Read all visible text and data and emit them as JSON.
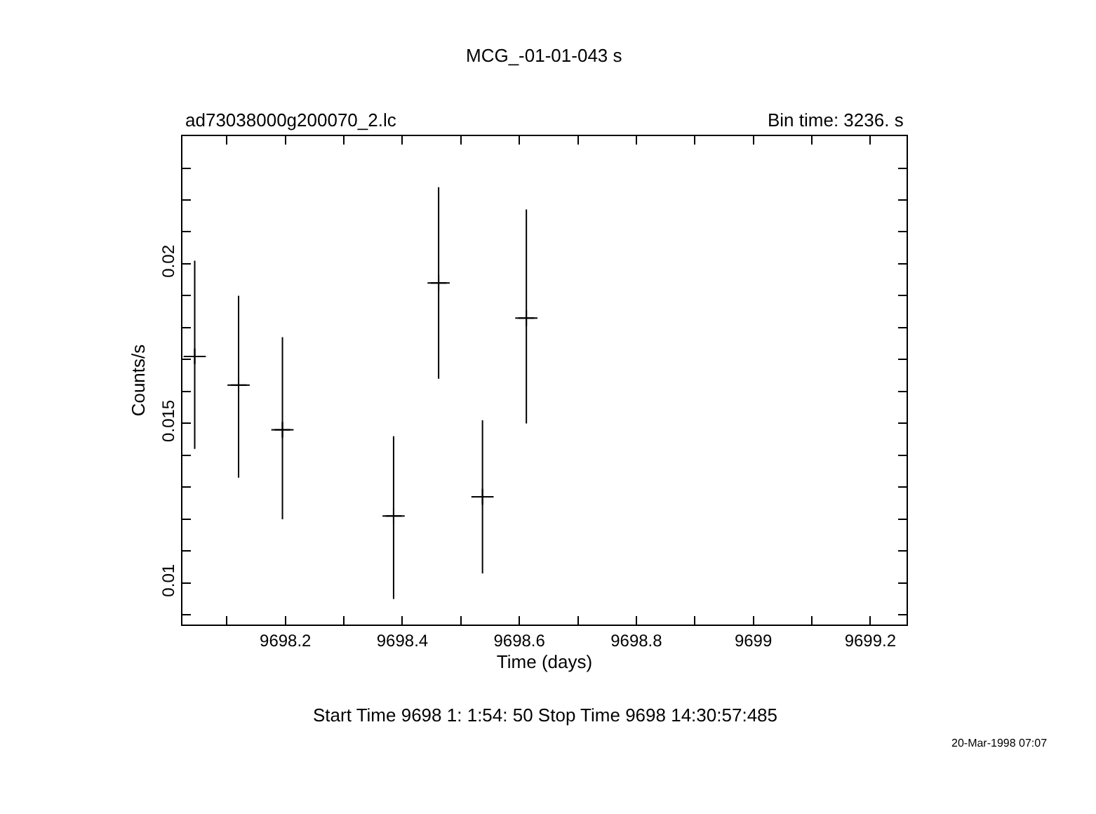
{
  "chart_data": {
    "type": "scatter",
    "title": "MCG_-01-01-043 s",
    "subtitle": "ad73038000g200070_2.lc",
    "xlabel": "Time (days)",
    "ylabel": "Counts/s",
    "annotations": [
      "Bin time: 3236. s",
      "Start Time 9698 1: 1:54: 50 Stop Time 9698 14:30:57:485",
      "20-Mar-1998 07:07"
    ],
    "x": [
      9698.045,
      9698.12,
      9698.195,
      9698.385,
      9698.462,
      9698.537,
      9698.612
    ],
    "series": [
      {
        "color": "#000000",
        "values": [
          0.0171,
          0.0162,
          0.0148,
          0.0121,
          0.0194,
          0.0127,
          0.0183
        ],
        "errors": [
          [
            0.0142,
            0.0201
          ],
          [
            0.0133,
            0.019
          ],
          [
            0.012,
            0.0177
          ],
          [
            0.0095,
            0.0146
          ],
          [
            0.0164,
            0.0224
          ],
          [
            0.0103,
            0.0151
          ],
          [
            0.015,
            0.0217
          ]
        ],
        "xerrors": [
          0.019,
          0.019,
          0.019,
          0.019,
          0.019,
          0.019,
          0.019
        ]
      }
    ],
    "xlim": [
      9698.024,
      9699.262
    ],
    "ylim": [
      0.0087,
      0.024
    ],
    "xticks": [
      {
        "value": 9698.1,
        "label": null
      },
      9698.2,
      {
        "value": 9698.3,
        "label": null
      },
      9698.4,
      {
        "value": 9698.5,
        "label": null
      },
      9698.6,
      {
        "value": 9698.7,
        "label": null
      },
      9698.8,
      {
        "value": 9698.9,
        "label": null
      },
      9699,
      {
        "value": 9699.1,
        "label": null
      },
      9699.2
    ],
    "yticks": [
      {
        "value": 0.009,
        "label": null
      },
      0.01,
      {
        "value": 0.011,
        "label": null
      },
      {
        "value": 0.012,
        "label": null
      },
      {
        "value": 0.013,
        "label": null
      },
      {
        "value": 0.014,
        "label": null
      },
      0.015,
      {
        "value": 0.016,
        "label": null
      },
      {
        "value": 0.017,
        "label": null
      },
      {
        "value": 0.018,
        "label": null
      },
      {
        "value": 0.019,
        "label": null
      },
      0.02,
      {
        "value": 0.021,
        "label": null
      },
      {
        "value": 0.022,
        "label": null
      },
      {
        "value": 0.023,
        "label": null
      }
    ],
    "legend": false,
    "marker": "cross"
  }
}
